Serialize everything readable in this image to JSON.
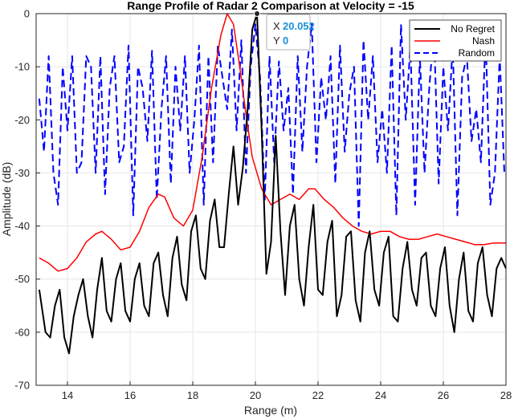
{
  "chart_data": {
    "type": "line",
    "title": "Range Profile of Radar 2 Comparison at Velocity = -15",
    "xlabel": "Range (m)",
    "ylabel": "Amplitude (dB)",
    "xlim": [
      13,
      28
    ],
    "ylim": [
      -70,
      0
    ],
    "xticks": [
      14,
      16,
      18,
      20,
      22,
      24,
      26,
      28
    ],
    "yticks": [
      0,
      -10,
      -20,
      -30,
      -40,
      -50,
      -60,
      -70
    ],
    "grid": true,
    "legend_position": "top-right",
    "series": [
      {
        "name": "No Regret",
        "color": "#000000",
        "style": "solid",
        "x": [
          13.1,
          13.3,
          13.45,
          13.6,
          13.75,
          13.9,
          14.05,
          14.2,
          14.35,
          14.5,
          14.65,
          14.8,
          14.95,
          15.1,
          15.25,
          15.4,
          15.55,
          15.7,
          15.85,
          16.0,
          16.15,
          16.3,
          16.45,
          16.6,
          16.75,
          16.9,
          17.05,
          17.2,
          17.35,
          17.5,
          17.65,
          17.8,
          17.95,
          18.1,
          18.25,
          18.4,
          18.55,
          18.7,
          18.85,
          19.0,
          19.15,
          19.3,
          19.45,
          19.6,
          19.75,
          19.9,
          20.052,
          20.2,
          20.35,
          20.5,
          20.65,
          20.8,
          20.95,
          21.1,
          21.25,
          21.4,
          21.55,
          21.7,
          21.85,
          22.0,
          22.15,
          22.3,
          22.45,
          22.6,
          22.75,
          22.9,
          23.05,
          23.2,
          23.35,
          23.5,
          23.65,
          23.8,
          23.95,
          24.1,
          24.25,
          24.4,
          24.55,
          24.7,
          24.85,
          25.0,
          25.15,
          25.3,
          25.45,
          25.6,
          25.75,
          25.9,
          26.05,
          26.2,
          26.35,
          26.5,
          26.65,
          26.8,
          26.95,
          27.1,
          27.25,
          27.4,
          27.55,
          27.7,
          27.85,
          28.0
        ],
        "values": [
          -52,
          -60,
          -61,
          -55,
          -52,
          -61,
          -64,
          -57,
          -53,
          -50,
          -57,
          -61,
          -52,
          -46,
          -56,
          -58,
          -50,
          -47,
          -56,
          -58,
          -50,
          -47,
          -55,
          -57,
          -47,
          -45,
          -53,
          -57,
          -46,
          -42,
          -51,
          -54,
          -41,
          -38,
          -48,
          -50,
          -39,
          -35,
          -44,
          -44,
          -34,
          -25,
          -36,
          -29,
          -18,
          -3,
          0,
          -22,
          -49,
          -43,
          -23,
          -41,
          -53,
          -40,
          -36,
          -50,
          -55,
          -44,
          -36,
          -52,
          -53,
          -43,
          -39,
          -57,
          -53,
          -42,
          -41,
          -54,
          -58,
          -45,
          -41,
          -52,
          -55,
          -45,
          -42,
          -57,
          -58,
          -48,
          -43,
          -52,
          -55,
          -46,
          -45,
          -55,
          -57,
          -48,
          -44,
          -55,
          -60,
          -50,
          -45,
          -56,
          -58,
          -47,
          -44,
          -53,
          -57,
          -48,
          -46,
          -48
        ]
      },
      {
        "name": "Nash",
        "color": "#ff0000",
        "style": "solid",
        "x": [
          13.1,
          13.4,
          13.7,
          14.0,
          14.3,
          14.6,
          14.9,
          15.1,
          15.4,
          15.7,
          16.0,
          16.3,
          16.6,
          16.9,
          17.1,
          17.4,
          17.7,
          18.0,
          18.3,
          18.6,
          18.9,
          19.1,
          19.3,
          19.5,
          19.7,
          19.9,
          20.2,
          20.5,
          20.8,
          21.1,
          21.4,
          21.7,
          21.9,
          22.2,
          22.5,
          22.8,
          23.1,
          23.4,
          23.7,
          24.0,
          24.3,
          24.6,
          24.9,
          25.2,
          25.5,
          25.8,
          26.1,
          26.4,
          26.7,
          27.0,
          27.3,
          27.6,
          28.0
        ],
        "values": [
          -46,
          -47,
          -48.5,
          -48,
          -46,
          -43,
          -41.5,
          -41,
          -42.5,
          -44.5,
          -44,
          -41,
          -36.5,
          -34,
          -34.5,
          -38.5,
          -40,
          -37,
          -27,
          -14,
          -4,
          0,
          -2,
          -10,
          -19,
          -27,
          -33,
          -36,
          -35,
          -34,
          -35,
          -33,
          -33,
          -35,
          -36.5,
          -38.5,
          -40,
          -41,
          -41.5,
          -41,
          -41,
          -42,
          -42.5,
          -42.5,
          -42,
          -41.5,
          -42,
          -42.5,
          -43,
          -43.5,
          -43.5,
          -43.2,
          -43.2
        ]
      },
      {
        "name": "Random",
        "color": "#0000ff",
        "style": "dashed",
        "x": [
          13.1,
          13.25,
          13.4,
          13.55,
          13.7,
          13.85,
          14.0,
          14.15,
          14.3,
          14.45,
          14.6,
          14.75,
          14.9,
          15.05,
          15.2,
          15.35,
          15.5,
          15.65,
          15.8,
          15.95,
          16.1,
          16.25,
          16.4,
          16.55,
          16.7,
          16.85,
          17.0,
          17.15,
          17.3,
          17.45,
          17.6,
          17.75,
          17.9,
          18.05,
          18.2,
          18.35,
          18.5,
          18.65,
          18.8,
          18.95,
          19.1,
          19.25,
          19.4,
          19.55,
          19.7,
          19.85,
          20.0,
          20.15,
          20.3,
          20.45,
          20.6,
          20.75,
          20.9,
          21.05,
          21.2,
          21.35,
          21.5,
          21.65,
          21.8,
          21.95,
          22.1,
          22.25,
          22.4,
          22.55,
          22.7,
          22.85,
          23.0,
          23.15,
          23.3,
          23.45,
          23.6,
          23.75,
          23.9,
          24.05,
          24.2,
          24.35,
          24.5,
          24.65,
          24.8,
          24.95,
          25.1,
          25.25,
          25.4,
          25.55,
          25.7,
          25.85,
          26.0,
          26.15,
          26.3,
          26.45,
          26.6,
          26.75,
          26.9,
          27.05,
          27.2,
          27.35,
          27.5,
          27.65,
          27.8,
          27.95
        ],
        "values": [
          -16,
          -26,
          -8,
          -30,
          -36,
          -10,
          -22,
          -8,
          -30,
          -28,
          -8,
          -10,
          -30,
          -8,
          -34,
          -14,
          -8,
          -28,
          -25,
          -6,
          -38,
          -10,
          -14,
          -24,
          -7,
          -35,
          -18,
          -8,
          -32,
          -10,
          -22,
          -8,
          -30,
          -20,
          -6,
          -36,
          -8,
          -28,
          -6,
          -12,
          -18,
          -3,
          -22,
          -5,
          -30,
          -10,
          -2,
          -12,
          -35,
          -8,
          -28,
          -9,
          -22,
          -14,
          -34,
          -8,
          -26,
          -10,
          -2,
          -28,
          -12,
          -20,
          -8,
          -32,
          -6,
          -26,
          -15,
          -10,
          -40,
          -5,
          -20,
          -8,
          -28,
          -18,
          -30,
          -6,
          -38,
          -2,
          -20,
          -6,
          -36,
          -8,
          -30,
          -14,
          -3,
          -32,
          -10,
          -22,
          -6,
          -38,
          -12,
          -8,
          -24,
          -18,
          -28,
          -4,
          -36,
          -30,
          -8,
          -30
        ]
      }
    ],
    "datatip": {
      "x_label": "X",
      "x_value": "20.052",
      "y_label": "Y",
      "y_value": "0",
      "x": 20.052,
      "y": 0
    }
  }
}
